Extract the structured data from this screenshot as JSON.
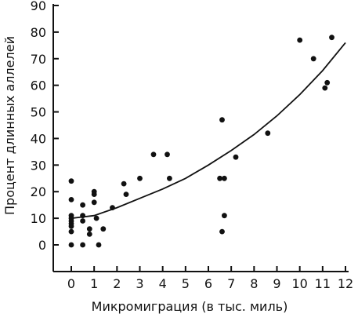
{
  "chart_data": {
    "type": "scatter",
    "xlabel": "Микромиграция (в тыс. миль)",
    "ylabel": "Процент длинных аллелей",
    "xlim": [
      0,
      12
    ],
    "ylim": [
      0,
      90
    ],
    "x_ticks": [
      "0",
      "1",
      "2",
      "3",
      "4",
      "5",
      "6",
      "7",
      "8",
      "9",
      "10",
      "11",
      "12"
    ],
    "y_ticks": [
      "0",
      "10",
      "20",
      "30",
      "40",
      "50",
      "60",
      "70",
      "80",
      "90"
    ],
    "grid": false,
    "points": [
      {
        "x": 0.0,
        "y": 24
      },
      {
        "x": 0.0,
        "y": 17
      },
      {
        "x": 0.0,
        "y": 11
      },
      {
        "x": 0.0,
        "y": 10
      },
      {
        "x": 0.0,
        "y": 9
      },
      {
        "x": 0.0,
        "y": 8
      },
      {
        "x": 0.0,
        "y": 7
      },
      {
        "x": 0.0,
        "y": 5
      },
      {
        "x": 0.0,
        "y": 0
      },
      {
        "x": 0.5,
        "y": 15
      },
      {
        "x": 0.5,
        "y": 11
      },
      {
        "x": 0.5,
        "y": 9
      },
      {
        "x": 0.5,
        "y": 0
      },
      {
        "x": 0.8,
        "y": 6
      },
      {
        "x": 0.8,
        "y": 4
      },
      {
        "x": 1.0,
        "y": 20
      },
      {
        "x": 1.0,
        "y": 19
      },
      {
        "x": 1.0,
        "y": 16
      },
      {
        "x": 1.1,
        "y": 10
      },
      {
        "x": 1.2,
        "y": 0
      },
      {
        "x": 1.4,
        "y": 6
      },
      {
        "x": 1.8,
        "y": 14
      },
      {
        "x": 2.3,
        "y": 23
      },
      {
        "x": 2.4,
        "y": 19
      },
      {
        "x": 3.0,
        "y": 25
      },
      {
        "x": 3.6,
        "y": 34
      },
      {
        "x": 4.2,
        "y": 34
      },
      {
        "x": 4.3,
        "y": 25
      },
      {
        "x": 6.5,
        "y": 25
      },
      {
        "x": 6.7,
        "y": 25
      },
      {
        "x": 6.6,
        "y": 47
      },
      {
        "x": 6.7,
        "y": 11
      },
      {
        "x": 6.6,
        "y": 5
      },
      {
        "x": 7.2,
        "y": 33
      },
      {
        "x": 8.6,
        "y": 42
      },
      {
        "x": 10.0,
        "y": 77
      },
      {
        "x": 10.6,
        "y": 70
      },
      {
        "x": 11.1,
        "y": 59
      },
      {
        "x": 11.2,
        "y": 61
      },
      {
        "x": 11.4,
        "y": 78
      }
    ],
    "trend_curve": {
      "type": "quadratic",
      "x_range": [
        0,
        12
      ],
      "samples": [
        {
          "x": 0,
          "y": 10
        },
        {
          "x": 1,
          "y": 11
        },
        {
          "x": 2,
          "y": 14
        },
        {
          "x": 3,
          "y": 17.5
        },
        {
          "x": 4,
          "y": 21
        },
        {
          "x": 5,
          "y": 25
        },
        {
          "x": 6,
          "y": 30
        },
        {
          "x": 7,
          "y": 35.5
        },
        {
          "x": 8,
          "y": 41.5
        },
        {
          "x": 9,
          "y": 48.5
        },
        {
          "x": 10,
          "y": 56.5
        },
        {
          "x": 11,
          "y": 65.5
        },
        {
          "x": 12,
          "y": 76
        }
      ]
    }
  }
}
